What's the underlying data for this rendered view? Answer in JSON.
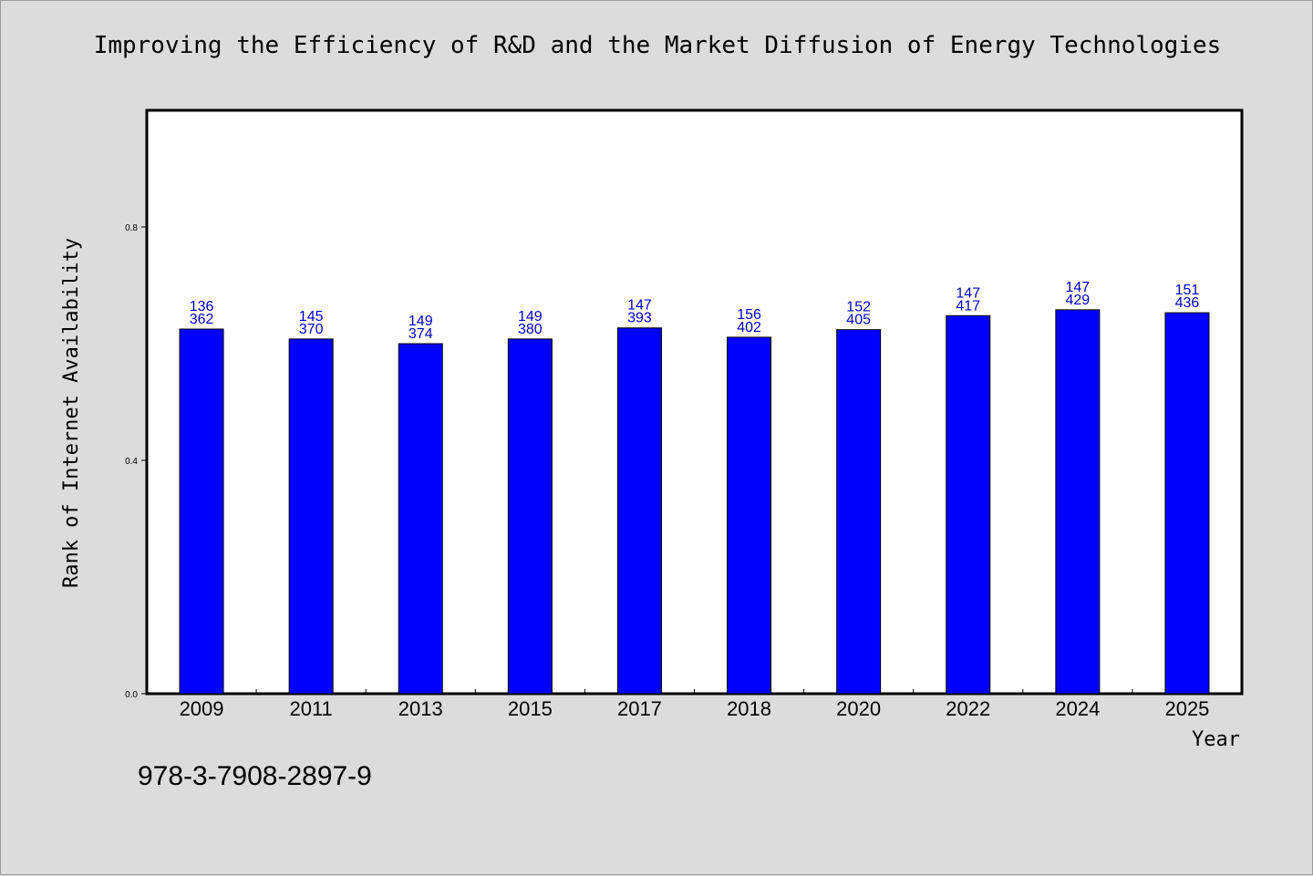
{
  "chart_data": {
    "type": "bar",
    "title": "Improving the Efficiency of R&D and the Market Diffusion of Energy Technologies",
    "xlabel": "Year",
    "ylabel": "Rank of Internet Availability",
    "ylim": [
      0,
      1.0
    ],
    "yticks": [
      "0.0",
      "0.4",
      "0.8"
    ],
    "categories": [
      "2009",
      "2011",
      "2013",
      "2015",
      "2017",
      "2018",
      "2020",
      "2022",
      "2024",
      "2025"
    ],
    "values": [
      0.625,
      0.608,
      0.6,
      0.608,
      0.627,
      0.611,
      0.624,
      0.648,
      0.658,
      0.653
    ],
    "labels_top": [
      "136",
      "145",
      "149",
      "149",
      "147",
      "156",
      "152",
      "147",
      "147",
      "151"
    ],
    "labels_bottom": [
      "362",
      "370",
      "374",
      "380",
      "393",
      "402",
      "405",
      "417",
      "429",
      "436"
    ],
    "bar_color": "#0000ff",
    "label_color": "#0000cc",
    "grid": false,
    "legend": false
  },
  "footer": {
    "isbn": "978-3-7908-2897-9"
  }
}
